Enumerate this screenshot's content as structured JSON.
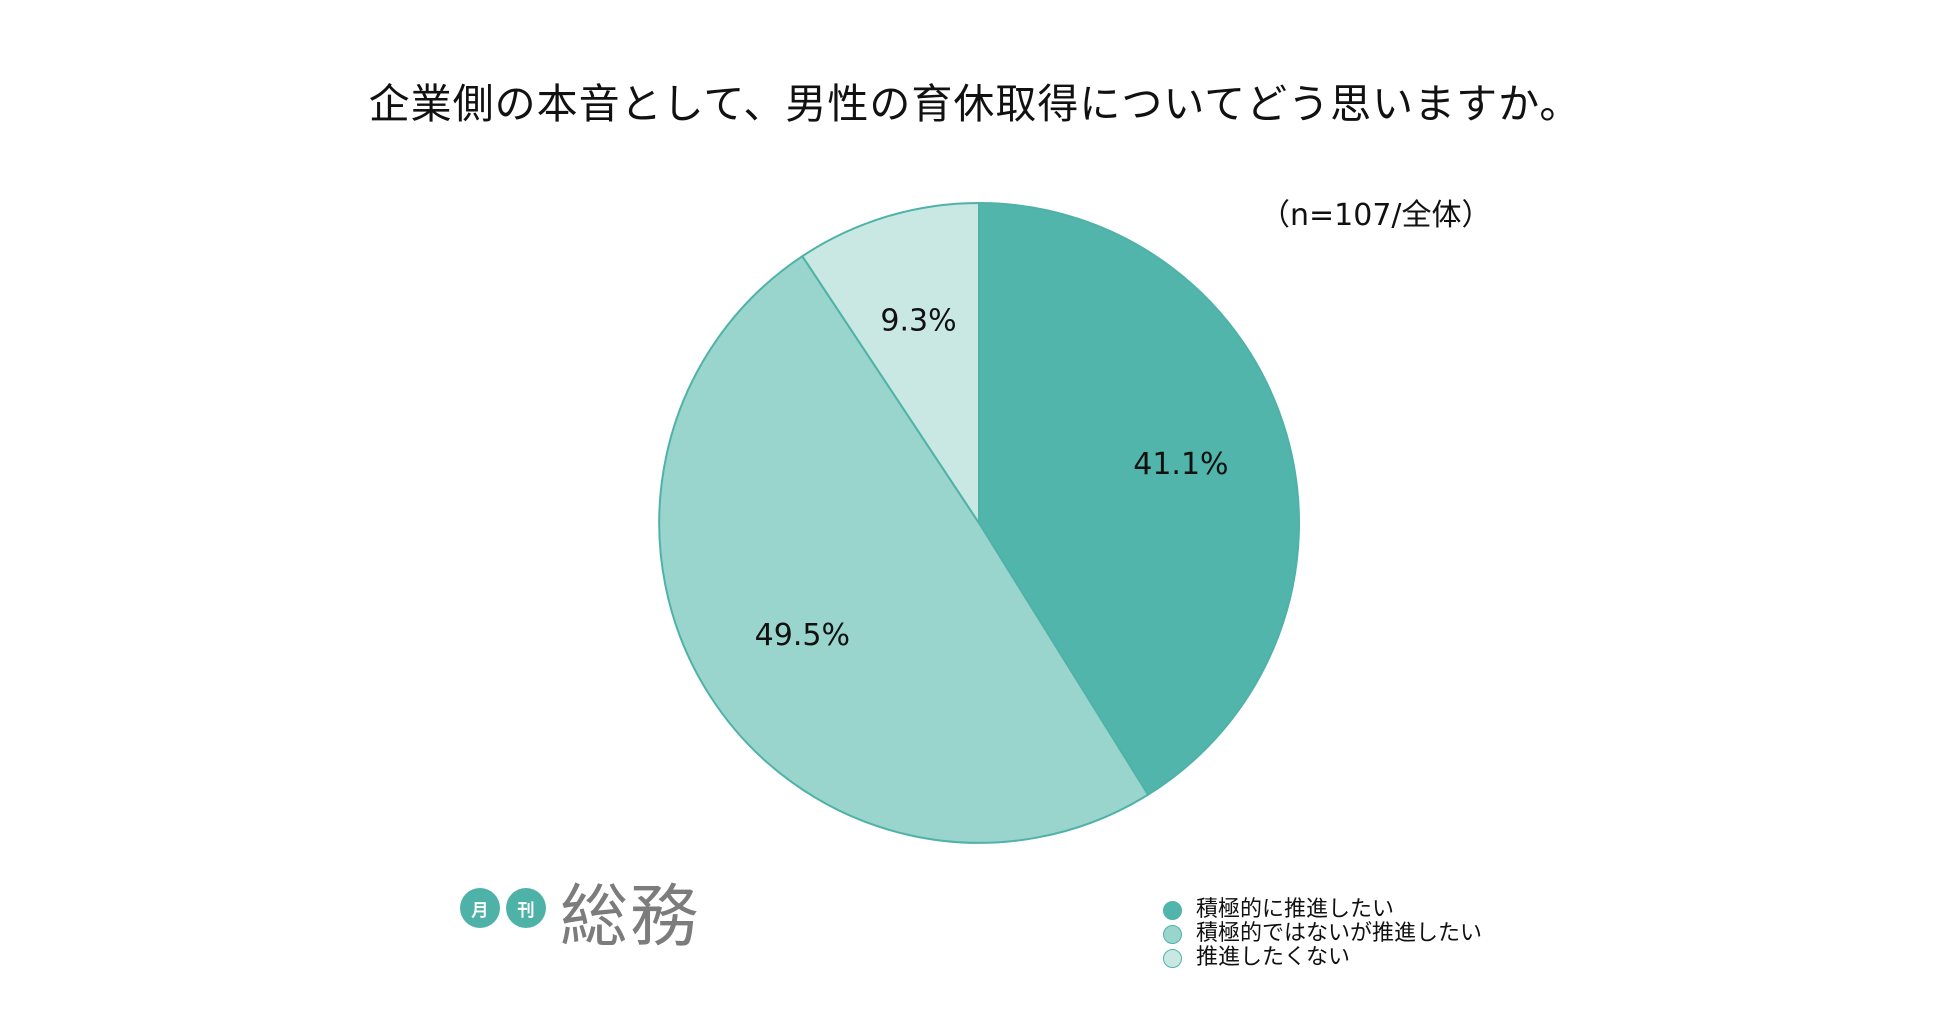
{
  "title": "企業側の本音として、男性の育休取得についてどう思いますか。",
  "note": "（n=107/全体）",
  "chart_data": {
    "type": "pie",
    "title": "企業側の本音として、男性の育休取得についてどう思いますか。",
    "slices": [
      {
        "name": "積極的に推進したい",
        "value": 41.1,
        "label": "41.1%",
        "color": "#52b5ab"
      },
      {
        "name": "積極的ではないが推進したい",
        "value": 49.5,
        "label": "49.5%",
        "color": "#99d5cc"
      },
      {
        "name": "推進したくない",
        "value": 9.3,
        "label": "9.3%",
        "color": "#c9e8e4"
      }
    ],
    "legend_position": "bottom-right",
    "start_angle": "12 o'clock",
    "direction": "clockwise"
  },
  "legend": [
    {
      "label": "積極的に推進したい",
      "color": "#52b5ab"
    },
    {
      "label": "積極的ではないが推進したい",
      "color": "#99d5cc"
    },
    {
      "label": "推進したくない",
      "color": "#c9e8e4"
    }
  ],
  "logo": {
    "small1": "月",
    "small2": "刊",
    "main": "総務",
    "circle_color": "#4fb2a8",
    "text_color": "#7c7c7c"
  },
  "colors": {
    "stroke": "#4fb2a8",
    "background": "#ffffff"
  }
}
